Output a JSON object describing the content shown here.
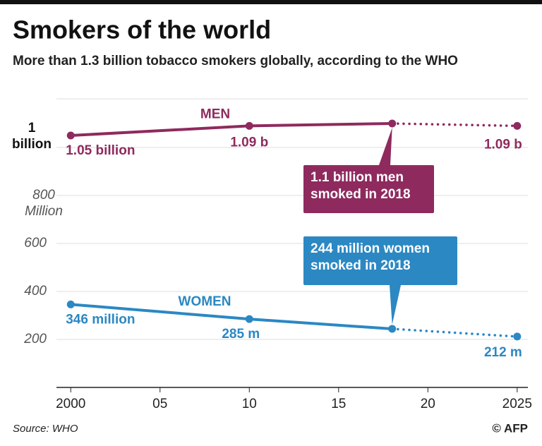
{
  "chart_data": {
    "type": "line",
    "title": "Smokers of the world",
    "subtitle": "More than 1.3 billion tobacco smokers globally, according to the WHO",
    "x": [
      2000,
      2010,
      2018,
      2025
    ],
    "series": [
      {
        "name": "MEN",
        "color": "#8e2a5e",
        "values": [
          1050,
          1090,
          1100,
          1090
        ],
        "value_labels": [
          "1.05 billion",
          "1.09 b",
          null,
          "1.09 b"
        ]
      },
      {
        "name": "WOMEN",
        "color": "#2b88c3",
        "values": [
          346,
          285,
          244,
          212
        ],
        "value_labels": [
          "346 million",
          "285 m",
          null,
          "212 m"
        ]
      }
    ],
    "dashed_from": 2018,
    "xlim": [
      1999.2,
      2025.6
    ],
    "xticks": [
      2000,
      {
        "value": 2005,
        "label": "05"
      },
      {
        "value": 2010,
        "label": "10"
      },
      {
        "value": 2015,
        "label": "15"
      },
      {
        "value": 2020,
        "label": "20"
      },
      2025
    ],
    "ylim": [
      0,
      1200
    ],
    "yticks": [
      200,
      400,
      600,
      {
        "value": 800,
        "label": "800 Million"
      },
      {
        "value": 1000,
        "label": "1 billion"
      }
    ],
    "grid": true,
    "annotations": [
      {
        "series": 0,
        "text": [
          "1.1 billion men",
          "smoked in 2018"
        ]
      },
      {
        "series": 1,
        "text": [
          "244 million women",
          "smoked in 2018"
        ]
      }
    ],
    "source": "Source: WHO",
    "credit": "© AFP"
  }
}
